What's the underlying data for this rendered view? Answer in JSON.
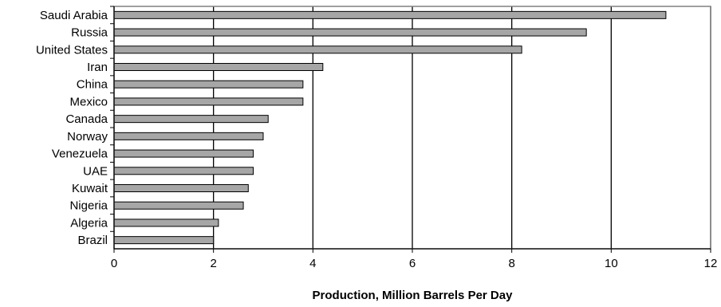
{
  "chart_data": {
    "type": "bar",
    "orientation": "horizontal",
    "title": "",
    "xlabel": "Production, Million Barrels Per Day",
    "ylabel": "",
    "xlim": [
      0,
      12
    ],
    "xticks": [
      0,
      2,
      4,
      6,
      8,
      10,
      12
    ],
    "grid": "vertical major gridlines",
    "bar_color": "#a6a6a6",
    "categories": [
      "Saudi Arabia",
      "Russia",
      "United States",
      "Iran",
      "China",
      "Mexico",
      "Canada",
      "Norway",
      "Venezuela",
      "UAE",
      "Kuwait",
      "Nigeria",
      "Algeria",
      "Brazil"
    ],
    "values": [
      11.1,
      9.5,
      8.2,
      4.2,
      3.8,
      3.8,
      3.1,
      3.0,
      2.8,
      2.8,
      2.7,
      2.6,
      2.1,
      2.0
    ]
  }
}
